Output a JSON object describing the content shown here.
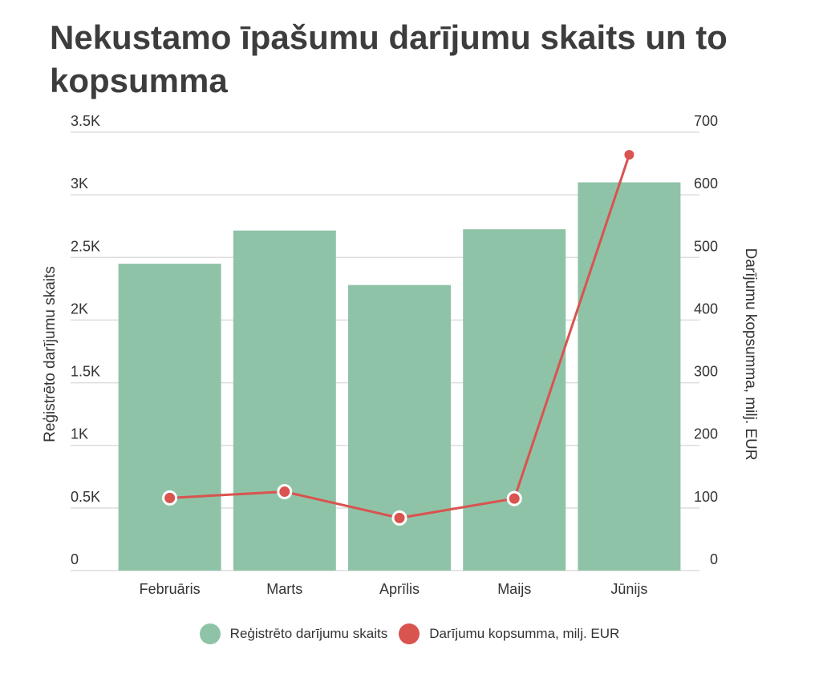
{
  "title": "Nekustamo īpašumu darījumu skaits un to kopsumma",
  "colors": {
    "bars": "#8fc3a7",
    "line": "#d9534f",
    "grid": "#dddddd"
  },
  "chart_data": {
    "type": "bar",
    "categories": [
      "Februāris",
      "Marts",
      "Aprīlis",
      "Maijs",
      "Jūnijs"
    ],
    "series": [
      {
        "name": "Reģistrēto darījumu skaits",
        "type": "bar",
        "axis": "left",
        "values": [
          2450,
          2715,
          2280,
          2725,
          3100
        ]
      },
      {
        "name": "Darījumu kopsumma, milj. EUR",
        "type": "line",
        "axis": "right",
        "values": [
          116,
          126,
          84,
          115,
          664
        ]
      }
    ],
    "y_left": {
      "label": "Reģistrēto darījumu skaits",
      "range": [
        0,
        3500
      ],
      "ticks": [
        "0",
        "0.5K",
        "1K",
        "1.5K",
        "2K",
        "2.5K",
        "3K",
        "3.5K"
      ]
    },
    "y_right": {
      "label": "Darījumu kopsumma, milj. EUR",
      "range": [
        0,
        700
      ],
      "ticks": [
        "0",
        "100",
        "200",
        "300",
        "400",
        "500",
        "600",
        "700"
      ]
    },
    "grid": true,
    "legend_position": "bottom"
  }
}
